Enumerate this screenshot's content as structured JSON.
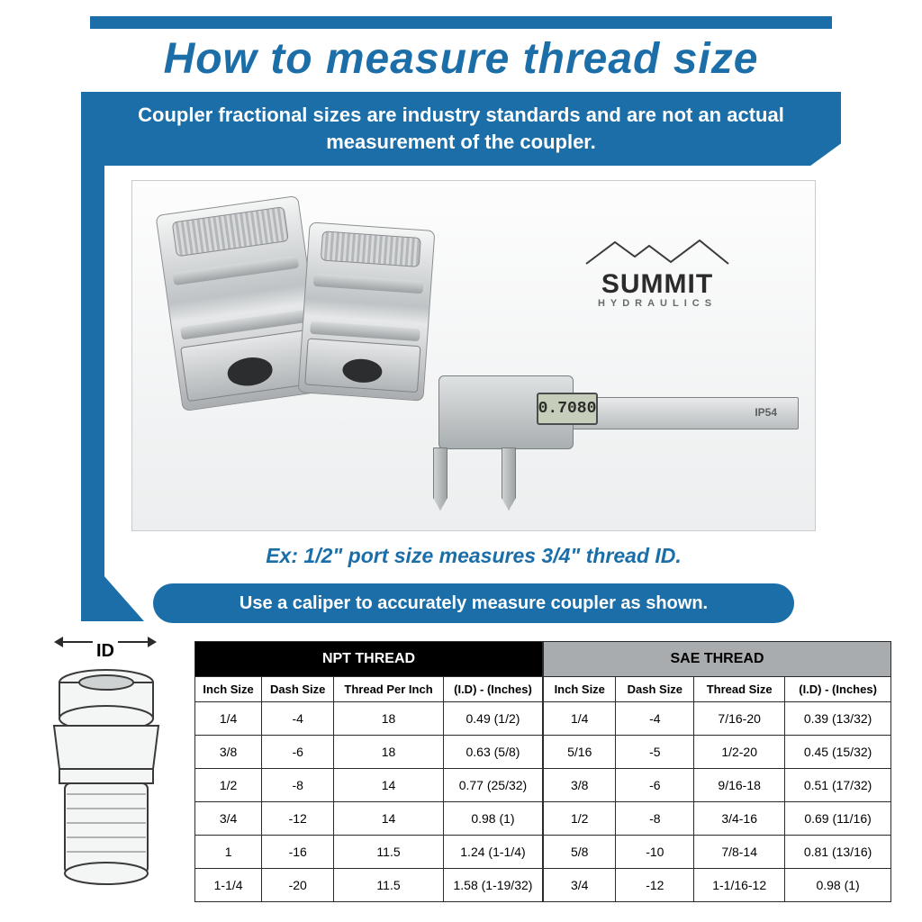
{
  "colors": {
    "brand_blue": "#1b6ea8",
    "text_dark": "#2b2b2b",
    "npt_header_bg": "#000000",
    "npt_header_fg": "#ffffff",
    "sae_header_bg": "#a9acaf",
    "sae_header_fg": "#000000",
    "table_border": "#2b2b2b",
    "page_bg": "#ffffff"
  },
  "title": "How to measure thread size",
  "subheader": "Coupler fractional sizes are industry standards and are not an actual measurement of the coupler.",
  "logo": {
    "main": "SUMMIT",
    "sub": "HYDRAULICS"
  },
  "caliper": {
    "readout": "0.7080",
    "rating": "IP54"
  },
  "example_line": "Ex: 1/2\" port size measures 3/4\" thread ID.",
  "pill": "Use a caliper to accurately measure coupler as shown.",
  "id_diagram_label": "ID",
  "tables": {
    "npt": {
      "title": "NPT THREAD",
      "columns": [
        "Inch Size",
        "Dash Size",
        "Thread Per Inch",
        "(I.D) - (Inches)"
      ],
      "rows": [
        [
          "1/4",
          "-4",
          "18",
          "0.49 (1/2)"
        ],
        [
          "3/8",
          "-6",
          "18",
          "0.63 (5/8)"
        ],
        [
          "1/2",
          "-8",
          "14",
          "0.77 (25/32)"
        ],
        [
          "3/4",
          "-12",
          "14",
          "0.98 (1)"
        ],
        [
          "1",
          "-16",
          "11.5",
          "1.24 (1-1/4)"
        ],
        [
          "1-1/4",
          "-20",
          "11.5",
          "1.58 (1-19/32)"
        ]
      ]
    },
    "sae": {
      "title": "SAE THREAD",
      "columns": [
        "Inch Size",
        "Dash Size",
        "Thread Size",
        "(I.D) - (Inches)"
      ],
      "rows": [
        [
          "1/4",
          "-4",
          "7/16-20",
          "0.39 (13/32)"
        ],
        [
          "5/16",
          "-5",
          "1/2-20",
          "0.45 (15/32)"
        ],
        [
          "3/8",
          "-6",
          "9/16-18",
          "0.51 (17/32)"
        ],
        [
          "1/2",
          "-8",
          "3/4-16",
          "0.69 (11/16)"
        ],
        [
          "5/8",
          "-10",
          "7/8-14",
          "0.81 (13/16)"
        ],
        [
          "3/4",
          "-12",
          "1-1/16-12",
          "0.98 (1)"
        ]
      ]
    }
  }
}
